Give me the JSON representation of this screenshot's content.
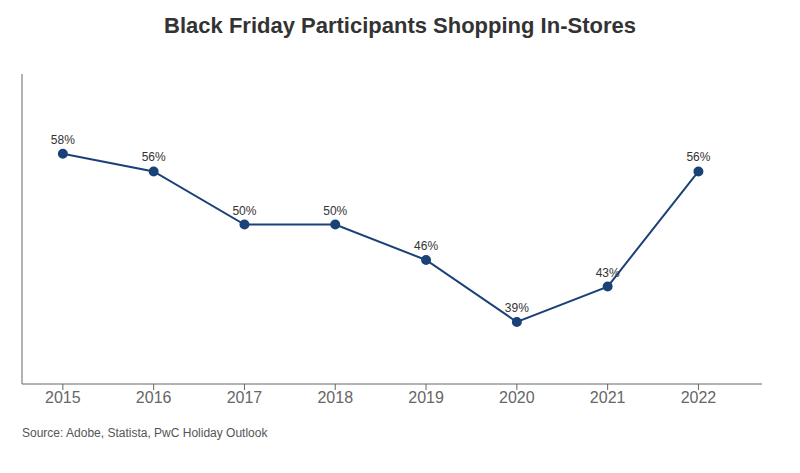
{
  "chart_data": {
    "type": "line",
    "title": "Black Friday Participants Shopping In-Stores",
    "x": [
      2015,
      2016,
      2017,
      2018,
      2019,
      2020,
      2021,
      2022
    ],
    "values": [
      58,
      56,
      50,
      50,
      46,
      39,
      43,
      56
    ],
    "value_labels": [
      "58%",
      "56%",
      "50%",
      "50%",
      "46%",
      "39%",
      "43%",
      "56%"
    ],
    "data_labels": true,
    "color": "#1b4278",
    "marker": "circle",
    "xlim": [
      2014.55,
      2022.7
    ],
    "xticks": [
      2015,
      2016,
      2017,
      2018,
      2019,
      2020,
      2021,
      2022
    ],
    "ylim": [
      32,
      67
    ],
    "grid": false,
    "tick_labels": "x",
    "annotations": [
      "Source: Adobe, Statista, PwC Holiday Outlook"
    ]
  }
}
